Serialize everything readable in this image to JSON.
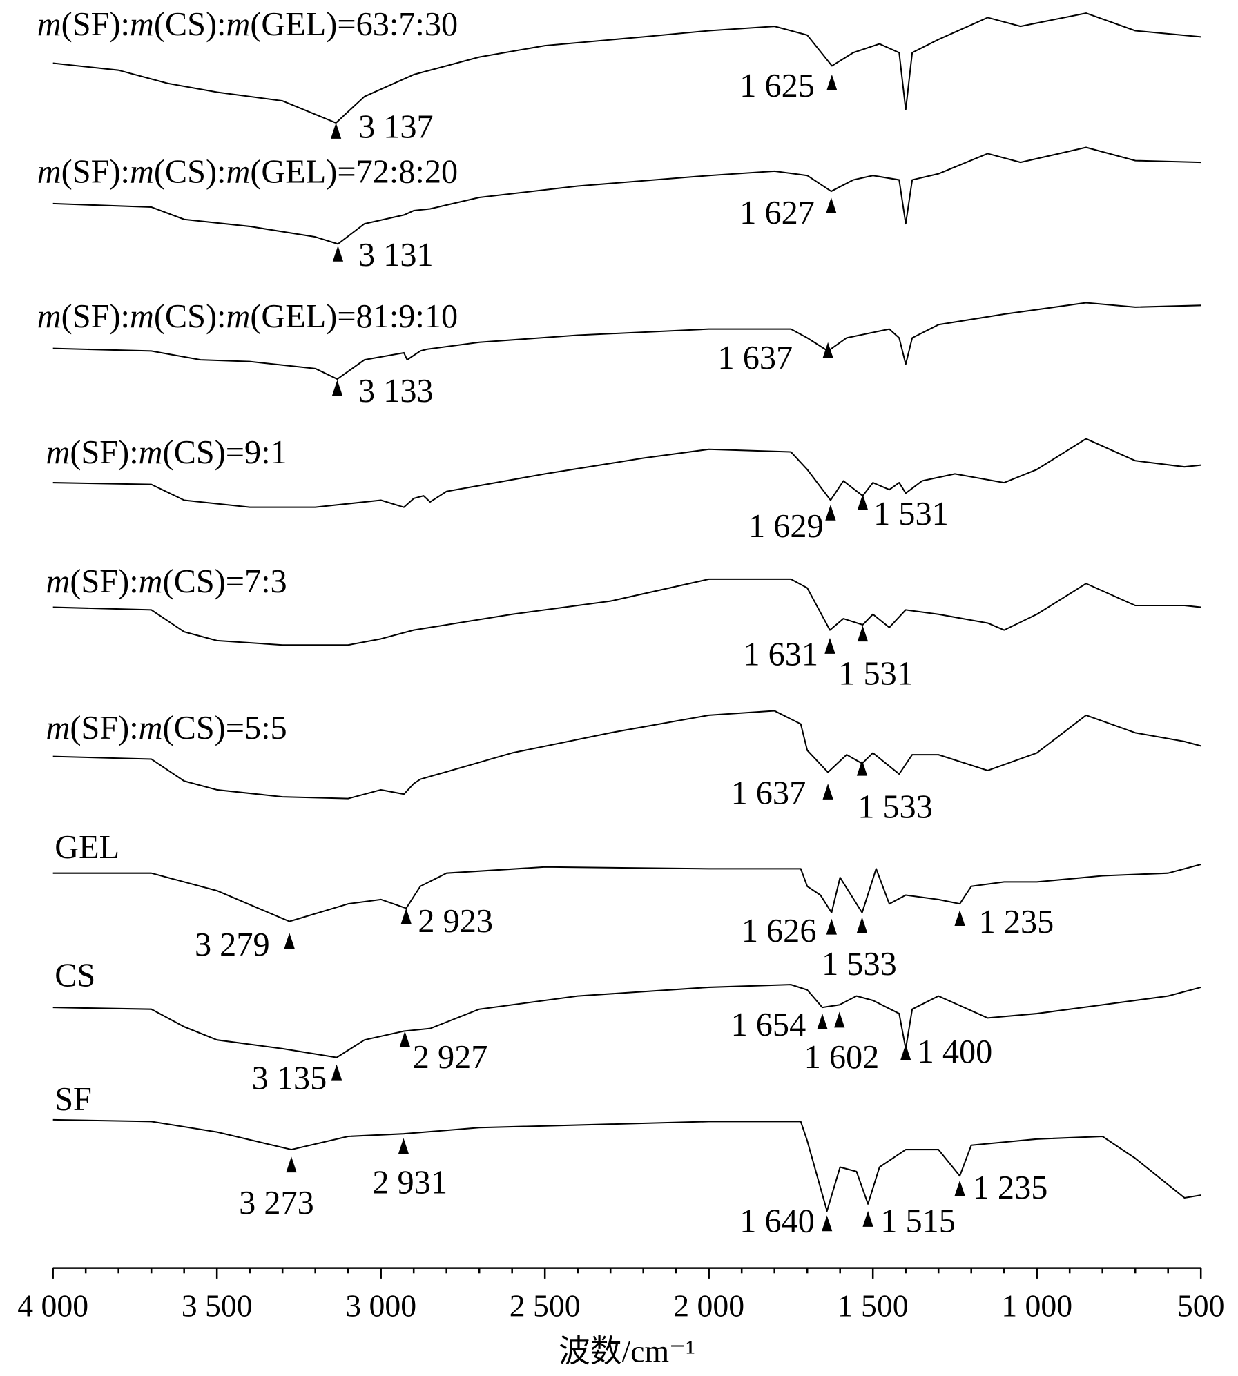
{
  "chart_data": {
    "type": "line",
    "title": "",
    "xlabel": "波数/cm⁻¹",
    "ylabel": "",
    "xlim": [
      4000,
      500
    ],
    "x_reversed": true,
    "x_ticks": [
      4000,
      3500,
      3000,
      2500,
      2000,
      1500,
      1000,
      500
    ],
    "x_tick_labels": [
      "4 000",
      "3 500",
      "3 000",
      "2 500",
      "2 000",
      "1 500",
      "1 000",
      "500"
    ],
    "y_units": "relative transmittance (a.u., stacked, offset from each trace's start)",
    "grid": false,
    "series": [
      {
        "name": "m(SF):m(CS):m(GEL)=63:7:30",
        "points": [
          [
            4000,
            0
          ],
          [
            3800,
            -8
          ],
          [
            3650,
            -23
          ],
          [
            3500,
            -33
          ],
          [
            3300,
            -43
          ],
          [
            3137,
            -68
          ],
          [
            3050,
            -38
          ],
          [
            2900,
            -13
          ],
          [
            2700,
            7
          ],
          [
            2500,
            20
          ],
          [
            2200,
            30
          ],
          [
            2000,
            37
          ],
          [
            1800,
            42
          ],
          [
            1700,
            32
          ],
          [
            1625,
            -3
          ],
          [
            1560,
            12
          ],
          [
            1480,
            22
          ],
          [
            1420,
            12
          ],
          [
            1400,
            -53
          ],
          [
            1380,
            12
          ],
          [
            1300,
            27
          ],
          [
            1150,
            52
          ],
          [
            1050,
            42
          ],
          [
            850,
            57
          ],
          [
            700,
            37
          ],
          [
            500,
            30
          ]
        ],
        "peaks": [
          {
            "x": 3137,
            "label": "3 137"
          },
          {
            "x": 1625,
            "label": "1 625"
          }
        ]
      },
      {
        "name": "m(SF):m(CS):m(GEL)=72:8:20",
        "points": [
          [
            4000,
            0
          ],
          [
            3700,
            -4
          ],
          [
            3600,
            -18
          ],
          [
            3400,
            -26
          ],
          [
            3200,
            -38
          ],
          [
            3131,
            -46
          ],
          [
            3050,
            -23
          ],
          [
            2930,
            -13
          ],
          [
            2900,
            -8
          ],
          [
            2850,
            -6
          ],
          [
            2700,
            7
          ],
          [
            2400,
            20
          ],
          [
            2000,
            32
          ],
          [
            1800,
            37
          ],
          [
            1700,
            32
          ],
          [
            1627,
            14
          ],
          [
            1560,
            27
          ],
          [
            1500,
            32
          ],
          [
            1420,
            27
          ],
          [
            1400,
            -23
          ],
          [
            1380,
            27
          ],
          [
            1300,
            34
          ],
          [
            1150,
            57
          ],
          [
            1050,
            47
          ],
          [
            850,
            64
          ],
          [
            700,
            49
          ],
          [
            500,
            47
          ]
        ],
        "peaks": [
          {
            "x": 3131,
            "label": "3 131"
          },
          {
            "x": 1627,
            "label": "1 627"
          }
        ]
      },
      {
        "name": "m(SF):m(CS):m(GEL)=81:9:10",
        "points": [
          [
            4000,
            0
          ],
          [
            3700,
            -3
          ],
          [
            3550,
            -13
          ],
          [
            3400,
            -15
          ],
          [
            3200,
            -23
          ],
          [
            3133,
            -35
          ],
          [
            3050,
            -13
          ],
          [
            2930,
            -5
          ],
          [
            2920,
            -13
          ],
          [
            2880,
            -3
          ],
          [
            2860,
            -1
          ],
          [
            2700,
            7
          ],
          [
            2400,
            15
          ],
          [
            2000,
            22
          ],
          [
            1750,
            22
          ],
          [
            1700,
            12
          ],
          [
            1637,
            -3
          ],
          [
            1580,
            12
          ],
          [
            1450,
            22
          ],
          [
            1420,
            12
          ],
          [
            1400,
            -18
          ],
          [
            1380,
            12
          ],
          [
            1300,
            27
          ],
          [
            1100,
            39
          ],
          [
            850,
            52
          ],
          [
            700,
            47
          ],
          [
            500,
            49
          ]
        ],
        "peaks": [
          {
            "x": 3133,
            "label": "3 133"
          },
          {
            "x": 1637,
            "label": "1 637"
          }
        ]
      },
      {
        "name": "m(SF):m(CS)=9:1",
        "points": [
          [
            4000,
            0
          ],
          [
            3700,
            -2
          ],
          [
            3600,
            -20
          ],
          [
            3400,
            -28
          ],
          [
            3200,
            -28
          ],
          [
            3000,
            -20
          ],
          [
            2930,
            -28
          ],
          [
            2900,
            -18
          ],
          [
            2870,
            -15
          ],
          [
            2850,
            -22
          ],
          [
            2800,
            -10
          ],
          [
            2500,
            10
          ],
          [
            2200,
            28
          ],
          [
            2000,
            38
          ],
          [
            1750,
            35
          ],
          [
            1700,
            15
          ],
          [
            1629,
            -20
          ],
          [
            1590,
            2
          ],
          [
            1531,
            -15
          ],
          [
            1500,
            0
          ],
          [
            1450,
            -8
          ],
          [
            1420,
            0
          ],
          [
            1400,
            -12
          ],
          [
            1350,
            2
          ],
          [
            1250,
            10
          ],
          [
            1100,
            0
          ],
          [
            1000,
            15
          ],
          [
            850,
            50
          ],
          [
            700,
            25
          ],
          [
            550,
            18
          ],
          [
            500,
            20
          ]
        ],
        "peaks": [
          {
            "x": 1629,
            "label": "1 629"
          },
          {
            "x": 1531,
            "label": "1 531"
          }
        ]
      },
      {
        "name": "m(SF):m(CS)=7:3",
        "points": [
          [
            4000,
            0
          ],
          [
            3700,
            -3
          ],
          [
            3600,
            -28
          ],
          [
            3500,
            -38
          ],
          [
            3300,
            -43
          ],
          [
            3100,
            -43
          ],
          [
            3000,
            -36
          ],
          [
            2900,
            -26
          ],
          [
            2600,
            -8
          ],
          [
            2300,
            7
          ],
          [
            2000,
            32
          ],
          [
            1750,
            32
          ],
          [
            1700,
            22
          ],
          [
            1631,
            -26
          ],
          [
            1590,
            -13
          ],
          [
            1531,
            -20
          ],
          [
            1500,
            -8
          ],
          [
            1450,
            -23
          ],
          [
            1400,
            -3
          ],
          [
            1300,
            -8
          ],
          [
            1150,
            -18
          ],
          [
            1100,
            -26
          ],
          [
            1000,
            -8
          ],
          [
            850,
            27
          ],
          [
            700,
            2
          ],
          [
            550,
            2
          ],
          [
            500,
            0
          ]
        ],
        "peaks": [
          {
            "x": 1631,
            "label": "1 631"
          },
          {
            "x": 1531,
            "label": "1 531"
          }
        ]
      },
      {
        "name": "m(SF):m(CS)=5:5",
        "points": [
          [
            4000,
            0
          ],
          [
            3700,
            -3
          ],
          [
            3600,
            -28
          ],
          [
            3500,
            -38
          ],
          [
            3300,
            -46
          ],
          [
            3100,
            -48
          ],
          [
            3000,
            -38
          ],
          [
            2930,
            -43
          ],
          [
            2900,
            -31
          ],
          [
            2880,
            -26
          ],
          [
            2600,
            4
          ],
          [
            2300,
            27
          ],
          [
            2000,
            47
          ],
          [
            1800,
            52
          ],
          [
            1720,
            37
          ],
          [
            1700,
            7
          ],
          [
            1637,
            -18
          ],
          [
            1580,
            2
          ],
          [
            1533,
            -8
          ],
          [
            1500,
            4
          ],
          [
            1420,
            -20
          ],
          [
            1380,
            2
          ],
          [
            1300,
            2
          ],
          [
            1150,
            -16
          ],
          [
            1000,
            4
          ],
          [
            850,
            47
          ],
          [
            700,
            27
          ],
          [
            550,
            17
          ],
          [
            500,
            12
          ]
        ],
        "peaks": [
          {
            "x": 1637,
            "label": "1 637"
          },
          {
            "x": 1533,
            "label": "1 533"
          }
        ]
      },
      {
        "name": "GEL",
        "points": [
          [
            4000,
            0
          ],
          [
            3700,
            0
          ],
          [
            3500,
            -20
          ],
          [
            3279,
            -55
          ],
          [
            3100,
            -35
          ],
          [
            3000,
            -30
          ],
          [
            2923,
            -40
          ],
          [
            2880,
            -15
          ],
          [
            2800,
            0
          ],
          [
            2500,
            7
          ],
          [
            2000,
            5
          ],
          [
            1720,
            5
          ],
          [
            1700,
            -15
          ],
          [
            1660,
            -25
          ],
          [
            1626,
            -45
          ],
          [
            1600,
            -5
          ],
          [
            1533,
            -45
          ],
          [
            1490,
            5
          ],
          [
            1450,
            -35
          ],
          [
            1400,
            -25
          ],
          [
            1300,
            -30
          ],
          [
            1235,
            -35
          ],
          [
            1200,
            -15
          ],
          [
            1100,
            -10
          ],
          [
            1000,
            -10
          ],
          [
            800,
            -3
          ],
          [
            600,
            0
          ],
          [
            500,
            10
          ]
        ],
        "peaks": [
          {
            "x": 3279,
            "label": "3 279"
          },
          {
            "x": 2923,
            "label": "2 923"
          },
          {
            "x": 1626,
            "label": "1 626"
          },
          {
            "x": 1533,
            "label": "1 533"
          },
          {
            "x": 1235,
            "label": "1 235"
          }
        ]
      },
      {
        "name": "CS",
        "points": [
          [
            4000,
            0
          ],
          [
            3700,
            -2
          ],
          [
            3600,
            -22
          ],
          [
            3500,
            -37
          ],
          [
            3300,
            -47
          ],
          [
            3135,
            -57
          ],
          [
            3050,
            -37
          ],
          [
            2930,
            -27
          ],
          [
            2850,
            -24
          ],
          [
            2700,
            -2
          ],
          [
            2400,
            13
          ],
          [
            2000,
            23
          ],
          [
            1750,
            26
          ],
          [
            1700,
            20
          ],
          [
            1654,
            0
          ],
          [
            1602,
            3
          ],
          [
            1550,
            13
          ],
          [
            1500,
            8
          ],
          [
            1420,
            -7
          ],
          [
            1400,
            -47
          ],
          [
            1380,
            -2
          ],
          [
            1300,
            13
          ],
          [
            1150,
            -12
          ],
          [
            1000,
            -7
          ],
          [
            800,
            3
          ],
          [
            600,
            13
          ],
          [
            500,
            23
          ]
        ],
        "peaks": [
          {
            "x": 3135,
            "label": "3 135"
          },
          {
            "x": 2927,
            "label": "2 927"
          },
          {
            "x": 1654,
            "label": "1 654"
          },
          {
            "x": 1602,
            "label": "1 602"
          },
          {
            "x": 1400,
            "label": "1 400"
          }
        ]
      },
      {
        "name": "SF",
        "points": [
          [
            4000,
            0
          ],
          [
            3700,
            -2
          ],
          [
            3500,
            -14
          ],
          [
            3273,
            -34
          ],
          [
            3100,
            -19
          ],
          [
            2931,
            -16
          ],
          [
            2700,
            -9
          ],
          [
            2000,
            -2
          ],
          [
            1720,
            -2
          ],
          [
            1700,
            -24
          ],
          [
            1640,
            -104
          ],
          [
            1600,
            -54
          ],
          [
            1550,
            -59
          ],
          [
            1515,
            -96
          ],
          [
            1480,
            -54
          ],
          [
            1400,
            -34
          ],
          [
            1300,
            -34
          ],
          [
            1235,
            -64
          ],
          [
            1200,
            -29
          ],
          [
            1000,
            -22
          ],
          [
            800,
            -19
          ],
          [
            700,
            -44
          ],
          [
            550,
            -89
          ],
          [
            500,
            -86
          ]
        ],
        "peaks": [
          {
            "x": 3273,
            "label": "3 273"
          },
          {
            "x": 2931,
            "label": "2 931"
          },
          {
            "x": 1640,
            "label": "1 640"
          },
          {
            "x": 1515,
            "label": "1 515"
          },
          {
            "x": 1235,
            "label": "1 235"
          }
        ]
      }
    ]
  }
}
